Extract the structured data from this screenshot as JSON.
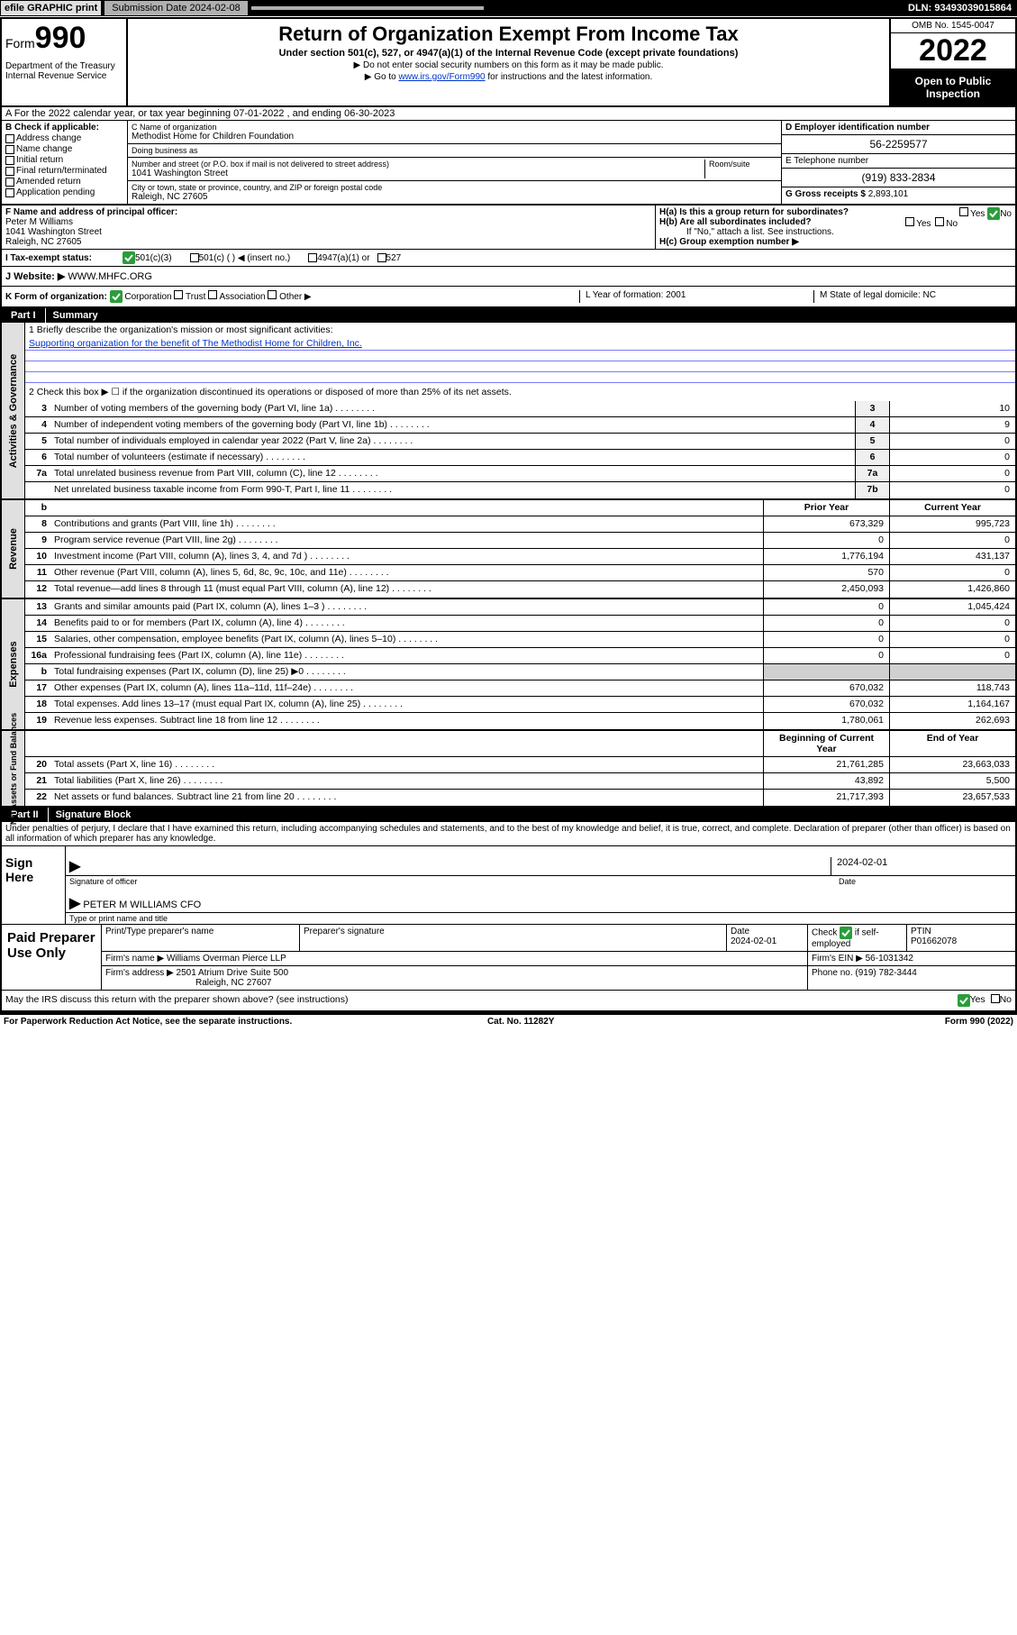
{
  "topbar": {
    "efile": "efile GRAPHIC print",
    "submission": "Submission Date 2024-02-08",
    "dln": "DLN: 93493039015864"
  },
  "header": {
    "form_prefix": "Form",
    "form_number": "990",
    "title": "Return of Organization Exempt From Income Tax",
    "sub1": "Under section 501(c), 527, or 4947(a)(1) of the Internal Revenue Code (except private foundations)",
    "sub2": "▶ Do not enter social security numbers on this form as it may be made public.",
    "sub3_pre": "▶ Go to ",
    "sub3_link": "www.irs.gov/Form990",
    "sub3_post": " for instructions and the latest information.",
    "dept": "Department of the Treasury\nInternal Revenue Service",
    "omb": "OMB No. 1545-0047",
    "year": "2022",
    "inspect": "Open to Public Inspection"
  },
  "rowA": "A For the 2022 calendar year, or tax year beginning 07-01-2022   , and ending 06-30-2023",
  "colB": {
    "title": "B Check if applicable:",
    "items": [
      "Address change",
      "Name change",
      "Initial return",
      "Final return/terminated",
      "Amended return",
      "Application pending"
    ]
  },
  "colC": {
    "name_label": "C Name of organization",
    "name": "Methodist Home for Children Foundation",
    "dba_label": "Doing business as",
    "dba": "",
    "street_label": "Number and street (or P.O. box if mail is not delivered to street address)",
    "room_label": "Room/suite",
    "street": "1041 Washington Street",
    "city_label": "City or town, state or province, country, and ZIP or foreign postal code",
    "city": "Raleigh, NC  27605"
  },
  "colD": {
    "ein_label": "D Employer identification number",
    "ein": "56-2259577",
    "phone_label": "E Telephone number",
    "phone": "(919) 833-2834",
    "gross_label": "G Gross receipts $",
    "gross": "2,893,101"
  },
  "rowF": {
    "label": "F Name and address of principal officer:",
    "name": "Peter M Williams",
    "addr1": "1041 Washington Street",
    "addr2": "Raleigh, NC  27605",
    "Ha": "H(a)  Is this a group return for subordinates?",
    "Hb": "H(b)  Are all subordinates included?",
    "Hb_note": "If \"No,\" attach a list. See instructions.",
    "Hc": "H(c)  Group exemption number ▶",
    "yes": "Yes",
    "no": "No"
  },
  "rowI": {
    "label": "I   Tax-exempt status:",
    "c3": "501(c)(3)",
    "c": "501(c) (  ) ◀ (insert no.)",
    "a1": "4947(a)(1) or",
    "s527": "527"
  },
  "rowJ": {
    "label": "J   Website: ▶",
    "val": "WWW.MHFC.ORG"
  },
  "rowK": {
    "label": "K Form of organization:",
    "corp": "Corporation",
    "trust": "Trust",
    "assoc": "Association",
    "other": "Other ▶",
    "L": "L Year of formation: 2001",
    "M": "M State of legal domicile: NC"
  },
  "partI": {
    "num": "Part I",
    "title": "Summary"
  },
  "summary": {
    "section1_label": "Activities & Governance",
    "line1_label": "1   Briefly describe the organization's mission or most significant activities:",
    "line1_val": "Supporting organization for the benefit of The Methodist Home for Children, Inc.",
    "line2": "2   Check this box ▶ ☐  if the organization discontinued its operations or disposed of more than 25% of its net assets.",
    "lines_a": [
      {
        "n": "3",
        "d": "Number of voting members of the governing body (Part VI, line 1a)",
        "b": "3",
        "v": "10"
      },
      {
        "n": "4",
        "d": "Number of independent voting members of the governing body (Part VI, line 1b)",
        "b": "4",
        "v": "9"
      },
      {
        "n": "5",
        "d": "Total number of individuals employed in calendar year 2022 (Part V, line 2a)",
        "b": "5",
        "v": "0"
      },
      {
        "n": "6",
        "d": "Total number of volunteers (estimate if necessary)",
        "b": "6",
        "v": "0"
      },
      {
        "n": "7a",
        "d": "Total unrelated business revenue from Part VIII, column (C), line 12",
        "b": "7a",
        "v": "0"
      },
      {
        "n": "",
        "d": "Net unrelated business taxable income from Form 990-T, Part I, line 11",
        "b": "7b",
        "v": "0"
      }
    ],
    "py": "Prior Year",
    "cy": "Current Year",
    "section2_label": "Revenue",
    "lines_r": [
      {
        "n": "8",
        "d": "Contributions and grants (Part VIII, line 1h)",
        "p": "673,329",
        "c": "995,723"
      },
      {
        "n": "9",
        "d": "Program service revenue (Part VIII, line 2g)",
        "p": "0",
        "c": "0"
      },
      {
        "n": "10",
        "d": "Investment income (Part VIII, column (A), lines 3, 4, and 7d )",
        "p": "1,776,194",
        "c": "431,137"
      },
      {
        "n": "11",
        "d": "Other revenue (Part VIII, column (A), lines 5, 6d, 8c, 9c, 10c, and 11e)",
        "p": "570",
        "c": "0"
      },
      {
        "n": "12",
        "d": "Total revenue—add lines 8 through 11 (must equal Part VIII, column (A), line 12)",
        "p": "2,450,093",
        "c": "1,426,860"
      }
    ],
    "section3_label": "Expenses",
    "lines_e": [
      {
        "n": "13",
        "d": "Grants and similar amounts paid (Part IX, column (A), lines 1–3 )",
        "p": "0",
        "c": "1,045,424"
      },
      {
        "n": "14",
        "d": "Benefits paid to or for members (Part IX, column (A), line 4)",
        "p": "0",
        "c": "0"
      },
      {
        "n": "15",
        "d": "Salaries, other compensation, employee benefits (Part IX, column (A), lines 5–10)",
        "p": "0",
        "c": "0"
      },
      {
        "n": "16a",
        "d": "Professional fundraising fees (Part IX, column (A), line 11e)",
        "p": "0",
        "c": "0"
      },
      {
        "n": "b",
        "d": "Total fundraising expenses (Part IX, column (D), line 25) ▶0",
        "p": "",
        "c": "",
        "shade": true
      },
      {
        "n": "17",
        "d": "Other expenses (Part IX, column (A), lines 11a–11d, 11f–24e)",
        "p": "670,032",
        "c": "118,743"
      },
      {
        "n": "18",
        "d": "Total expenses. Add lines 13–17 (must equal Part IX, column (A), line 25)",
        "p": "670,032",
        "c": "1,164,167"
      },
      {
        "n": "19",
        "d": "Revenue less expenses. Subtract line 18 from line 12",
        "p": "1,780,061",
        "c": "262,693"
      }
    ],
    "section4_label": "Net Assets or Fund Balances",
    "by": "Beginning of Current Year",
    "ey": "End of Year",
    "lines_n": [
      {
        "n": "20",
        "d": "Total assets (Part X, line 16)",
        "p": "21,761,285",
        "c": "23,663,033"
      },
      {
        "n": "21",
        "d": "Total liabilities (Part X, line 26)",
        "p": "43,892",
        "c": "5,500"
      },
      {
        "n": "22",
        "d": "Net assets or fund balances. Subtract line 21 from line 20",
        "p": "21,717,393",
        "c": "23,657,533"
      }
    ]
  },
  "partII": {
    "num": "Part II",
    "title": "Signature Block"
  },
  "penalties": "Under penalties of perjury, I declare that I have examined this return, including accompanying schedules and statements, and to the best of my knowledge and belief, it is true, correct, and complete. Declaration of preparer (other than officer) is based on all information of which preparer has any knowledge.",
  "sign": {
    "here": "Sign Here",
    "sig_label": "Signature of officer",
    "date": "2024-02-01",
    "date_label": "Date",
    "name": "PETER M WILLIAMS CFO",
    "name_label": "Type or print name and title"
  },
  "prep": {
    "label": "Paid Preparer Use Only",
    "h1": "Print/Type preparer's name",
    "h2": "Preparer's signature",
    "h3": "Date",
    "h4": "Check ☑ if self-employed",
    "h5": "PTIN",
    "date": "2024-02-01",
    "ptin": "P01662078",
    "firm_name_label": "Firm's name    ▶",
    "firm_name": "Williams Overman Pierce LLP",
    "firm_ein_label": "Firm's EIN ▶",
    "firm_ein": "56-1031342",
    "firm_addr_label": "Firm's address ▶",
    "firm_addr1": "2501 Atrium Drive Suite 500",
    "firm_addr2": "Raleigh, NC  27607",
    "phone_label": "Phone no.",
    "phone": "(919) 782-3444"
  },
  "discuss": "May the IRS discuss this return with the preparer shown above? (see instructions)",
  "footer": {
    "left": "For Paperwork Reduction Act Notice, see the separate instructions.",
    "mid": "Cat. No. 11282Y",
    "right": "Form 990 (2022)"
  }
}
